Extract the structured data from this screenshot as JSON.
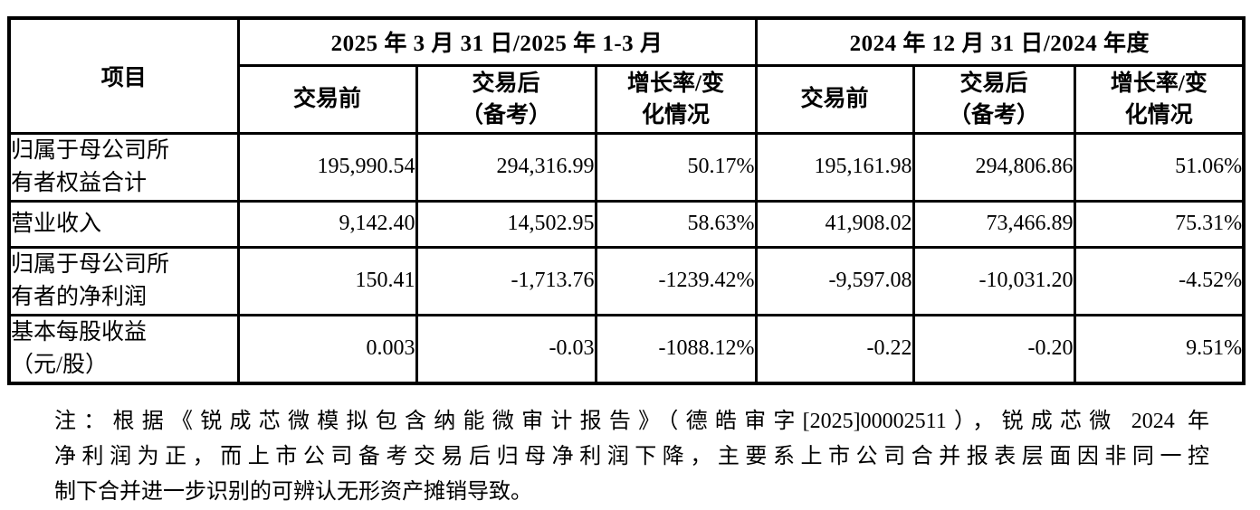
{
  "table": {
    "item_header": "项目",
    "period_headers": [
      "2025 年 3 月 31 日/2025 年 1-3 月",
      "2024 年 12 月 31 日/2024 年度"
    ],
    "sub_headers": [
      "交易前",
      "交易后\n（备考）",
      "增长率/变\n化情况",
      "交易前",
      "交易后\n（备考）",
      "增长率/变\n化情况"
    ],
    "rows": [
      {
        "label": "归属于母公司所\n有者权益合计",
        "values": [
          "195,990.54",
          "294,316.99",
          "50.17%",
          "195,161.98",
          "294,806.86",
          "51.06%"
        ]
      },
      {
        "label": "营业收入",
        "values": [
          "9,142.40",
          "14,502.95",
          "58.63%",
          "41,908.02",
          "73,466.89",
          "75.31%"
        ]
      },
      {
        "label": "归属于母公司所\n有者的净利润",
        "values": [
          "150.41",
          "-1,713.76",
          "-1239.42%",
          "-9,597.08",
          "-10,031.20",
          "-4.52%"
        ]
      },
      {
        "label": "基本每股收益\n（元/股）",
        "values": [
          "0.003",
          "-0.03",
          "-1088.12%",
          "-0.22",
          "-0.20",
          "9.51%"
        ]
      }
    ]
  },
  "note": {
    "lines": [
      "注：根据《锐成芯微模拟包含纳能微审计报告》（德皓审字[2025]00002511），锐成芯微 2024 年",
      "净利润为正，而上市公司备考交易后归母净利润下降，主要系上市公司合并报表层面因非同一控",
      "制下合并进一步识别的可辨认无形资产摊销导致。"
    ]
  },
  "colors": {
    "text": "#000000",
    "border": "#000000",
    "background": "#ffffff"
  }
}
